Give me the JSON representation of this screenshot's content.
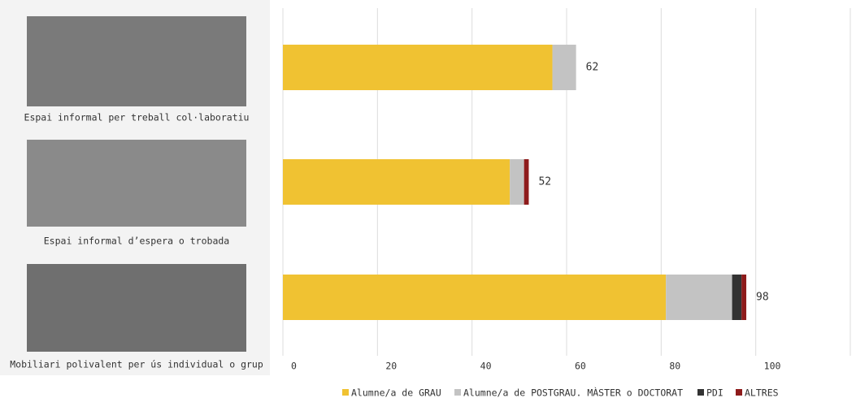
{
  "chart_data": {
    "type": "stacked-barh",
    "categories": [
      "Espai informal per treball col·laboratiu",
      "Espai informal d’espera o trobada",
      "Mobiliari polivalent per ús individual o grup"
    ],
    "series": [
      {
        "name": "Alumne/a de GRAU",
        "color": "#f0c232",
        "values": [
          57,
          48,
          81
        ]
      },
      {
        "name": "Alumne/a de POSTGRAU. MÀSTER o DOCTORAT",
        "color": "#c3c3c3",
        "values": [
          5,
          3,
          14
        ]
      },
      {
        "name": "PDI",
        "color": "#333333",
        "values": [
          0,
          0,
          2
        ]
      },
      {
        "name": "ALTRES",
        "color": "#8e1b1b",
        "values": [
          0,
          1,
          1
        ]
      }
    ],
    "totals": [
      62,
      52,
      98
    ],
    "xlim": [
      0,
      120
    ],
    "xticks": [
      0,
      20,
      40,
      60,
      80,
      100,
      120
    ],
    "grid": true,
    "legend": "bottom"
  }
}
